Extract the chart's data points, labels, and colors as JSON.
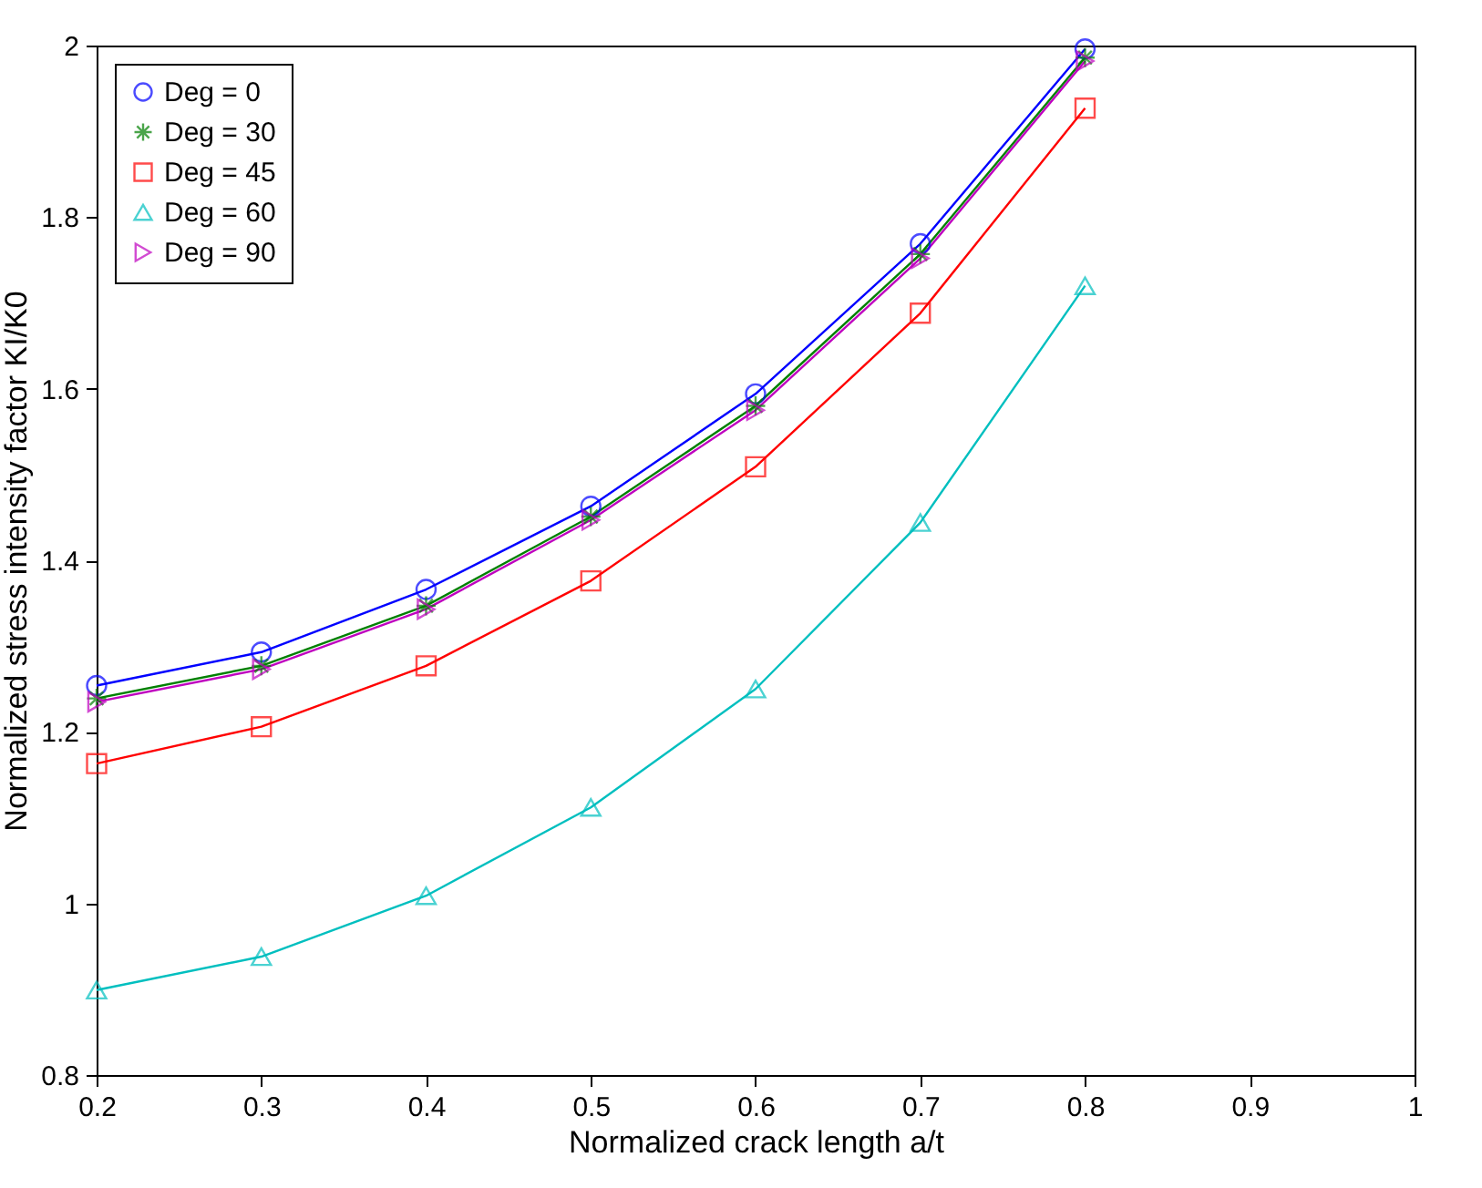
{
  "chart_data": {
    "type": "line",
    "xlabel": "Normalized crack length a/t",
    "ylabel": "Normalized stress intensity factor KI/K0",
    "x": [
      0.2,
      0.3,
      0.4,
      0.5,
      0.6,
      0.7,
      0.8
    ],
    "series": [
      {
        "name": "Deg = 0",
        "color": "#0000ff",
        "marker": "circle",
        "values": [
          1.254,
          1.293,
          1.366,
          1.463,
          1.594,
          1.769,
          1.996
        ]
      },
      {
        "name": "Deg = 30",
        "color": "#008000",
        "marker": "cross",
        "values": [
          1.239,
          1.277,
          1.347,
          1.451,
          1.58,
          1.757,
          1.986
        ]
      },
      {
        "name": "Deg = 45",
        "color": "#ff0000",
        "marker": "square",
        "values": [
          1.163,
          1.206,
          1.277,
          1.376,
          1.509,
          1.688,
          1.927
        ]
      },
      {
        "name": "Deg = 60",
        "color": "#00bfbf",
        "marker": "triangle",
        "values": [
          0.899,
          0.938,
          1.009,
          1.112,
          1.25,
          1.444,
          1.72
        ]
      },
      {
        "name": "Deg = 90",
        "color": "#bf00bf",
        "marker": "triangle-right",
        "values": [
          1.235,
          1.273,
          1.343,
          1.447,
          1.575,
          1.752,
          1.982
        ]
      }
    ],
    "xlim": [
      0.2,
      1
    ],
    "xticks": [
      0.2,
      0.3,
      0.4,
      0.5,
      0.6,
      0.7,
      0.8,
      0.9,
      1
    ],
    "ylim": [
      0.8,
      2
    ],
    "yticks": [
      0.8,
      1,
      1.2,
      1.4,
      1.6,
      1.8,
      2
    ],
    "grid": false,
    "legend": "top left",
    "line_style": "solid"
  }
}
